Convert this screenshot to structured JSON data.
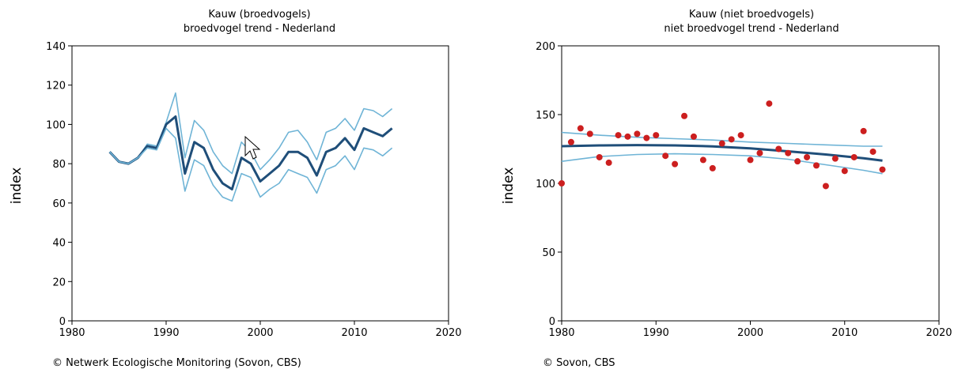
{
  "colors": {
    "main": "#1f4e79",
    "band": "#6fb4d6",
    "point": "#cc1f1f",
    "frame": "#000000"
  },
  "cursor_icon": "arrow-cursor-icon",
  "credits": {
    "left": "© Netwerk Ecologische Monitoring (Sovon, CBS)",
    "right": "© Sovon, CBS"
  },
  "chart_data": [
    {
      "type": "line",
      "title": "Kauw (broedvogels)",
      "subtitle": "broedvogel trend - Nederland",
      "xlabel": "",
      "ylabel": "index",
      "xlim": [
        1980,
        2020
      ],
      "ylim": [
        0,
        140
      ],
      "xticks": [
        1980,
        1990,
        2000,
        2010,
        2020
      ],
      "yticks": [
        0,
        20,
        40,
        60,
        80,
        100,
        120,
        140
      ],
      "grid": false,
      "x": [
        1984,
        1985,
        1986,
        1987,
        1988,
        1989,
        1990,
        1991,
        1992,
        1993,
        1994,
        1995,
        1996,
        1997,
        1998,
        1999,
        2000,
        2001,
        2002,
        2003,
        2004,
        2005,
        2006,
        2007,
        2008,
        2009,
        2010,
        2011,
        2012,
        2013,
        2014
      ],
      "series": [
        {
          "role": "upper",
          "values": [
            86,
            81,
            80,
            83,
            90,
            89,
            101,
            116,
            83,
            102,
            97,
            86,
            79,
            75,
            91,
            86,
            77,
            82,
            88,
            96,
            97,
            91,
            82,
            96,
            98,
            103,
            97,
            108,
            107,
            104,
            108
          ]
        },
        {
          "role": "index",
          "values": [
            86,
            81,
            80,
            83,
            89,
            88,
            100,
            104,
            75,
            91,
            88,
            77,
            70,
            67,
            83,
            80,
            71,
            75,
            79,
            86,
            86,
            83,
            74,
            86,
            88,
            93,
            87,
            98,
            96,
            94,
            98
          ]
        },
        {
          "role": "lower",
          "values": [
            86,
            81,
            80,
            83,
            88,
            87,
            98,
            93,
            66,
            82,
            79,
            69,
            63,
            61,
            75,
            73,
            63,
            67,
            70,
            77,
            75,
            73,
            65,
            77,
            79,
            84,
            77,
            88,
            87,
            84,
            88
          ]
        }
      ]
    },
    {
      "type": "scatter",
      "title": "Kauw (niet broedvogels)",
      "subtitle": "niet broedvogel trend - Nederland",
      "xlabel": "",
      "ylabel": "index",
      "xlim": [
        1980,
        2020
      ],
      "ylim": [
        0,
        200
      ],
      "xticks": [
        1980,
        1990,
        2000,
        2010,
        2020
      ],
      "yticks": [
        0,
        50,
        100,
        150,
        200
      ],
      "grid": false,
      "points": {
        "x": [
          1980,
          1981,
          1982,
          1983,
          1984,
          1985,
          1986,
          1987,
          1988,
          1989,
          1990,
          1991,
          1992,
          1993,
          1994,
          1995,
          1996,
          1997,
          1998,
          1999,
          2000,
          2001,
          2002,
          2003,
          2004,
          2005,
          2006,
          2007,
          2008,
          2009,
          2010,
          2011,
          2012,
          2013,
          2014
        ],
        "y": [
          100,
          130,
          140,
          136,
          119,
          115,
          135,
          134,
          136,
          133,
          135,
          120,
          114,
          149,
          134,
          117,
          111,
          129,
          132,
          135,
          117,
          122,
          158,
          125,
          122,
          116,
          119,
          113,
          98,
          118,
          109,
          119,
          138,
          123,
          110
        ]
      },
      "trend": {
        "x": [
          1980,
          1984,
          1988,
          1992,
          1996,
          2000,
          2004,
          2008,
          2012,
          2014
        ],
        "values": [
          127,
          127.6,
          127.8,
          127.6,
          126.9,
          125.4,
          123.3,
          121.0,
          118.3,
          116.5
        ],
        "upper": [
          137,
          135,
          133.5,
          132.5,
          131.5,
          130,
          129,
          128,
          127,
          127
        ],
        "lower": [
          116,
          119.5,
          121,
          121.5,
          121,
          120,
          117.5,
          113.5,
          109.5,
          107
        ]
      }
    }
  ]
}
